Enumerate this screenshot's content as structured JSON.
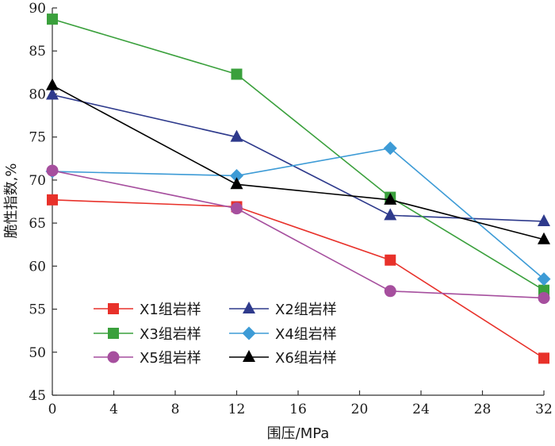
{
  "chart_data": {
    "type": "line",
    "xlabel": "围压/MPa",
    "ylabel": "脆性指数,%",
    "xlim": [
      0,
      32
    ],
    "ylim": [
      45,
      90
    ],
    "xticks": [
      0,
      4,
      8,
      12,
      16,
      20,
      24,
      28,
      32
    ],
    "yticks": [
      45,
      50,
      55,
      60,
      65,
      70,
      75,
      80,
      85,
      90
    ],
    "x": [
      0,
      12,
      22,
      32
    ],
    "grid": false,
    "legend_position": "bottom-left",
    "series": [
      {
        "name": "X1组岩样",
        "values": [
          67.7,
          66.9,
          60.7,
          49.3
        ],
        "color": "#e8312a",
        "marker": "square"
      },
      {
        "name": "X2组岩样",
        "values": [
          79.9,
          75.0,
          65.9,
          65.2
        ],
        "color": "#2e3a8c",
        "marker": "triangle"
      },
      {
        "name": "X3组岩样",
        "values": [
          88.7,
          82.3,
          68.0,
          57.2
        ],
        "color": "#3aa03c",
        "marker": "square"
      },
      {
        "name": "X4组岩样",
        "values": [
          71.0,
          70.5,
          73.7,
          58.5
        ],
        "color": "#3d9bd6",
        "marker": "diamond"
      },
      {
        "name": "X5组岩样",
        "values": [
          71.1,
          66.7,
          57.1,
          56.3
        ],
        "color": "#a64f9e",
        "marker": "circle"
      },
      {
        "name": "X6组岩样",
        "values": [
          81.0,
          69.5,
          67.7,
          63.1
        ],
        "color": "#000000",
        "marker": "triangle"
      }
    ]
  }
}
